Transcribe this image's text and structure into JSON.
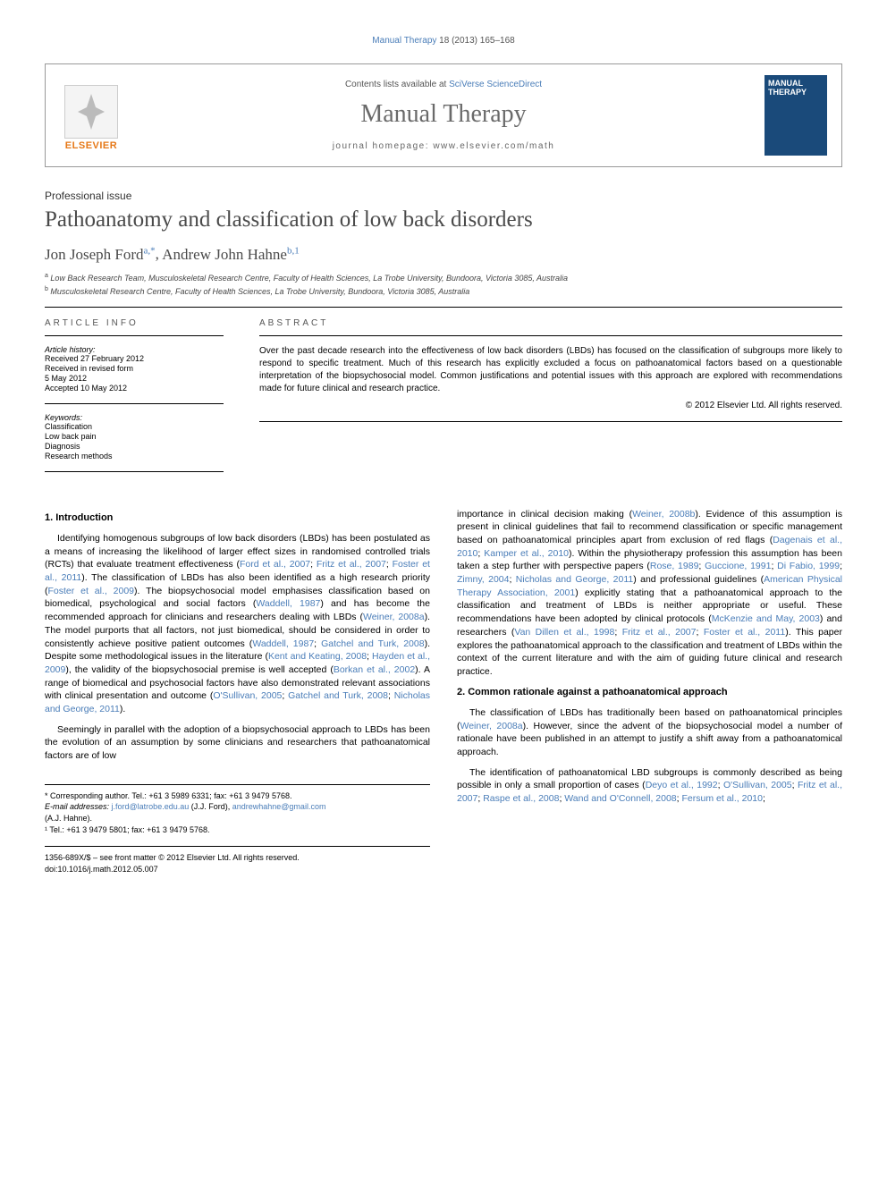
{
  "top_citation": {
    "journal": "Manual Therapy",
    "vol_pages": "18 (2013) 165–168"
  },
  "header": {
    "contents_prefix": "Contents lists available at ",
    "contents_link": "SciVerse ScienceDirect",
    "journal_name": "Manual Therapy",
    "homepage_label": "journal homepage: ",
    "homepage_url": "www.elsevier.com/math",
    "elsevier_label": "ELSEVIER",
    "cover_title": "MANUAL THERAPY"
  },
  "article": {
    "type": "Professional issue",
    "title": "Pathoanatomy and classification of low back disorders",
    "authors": [
      {
        "name": "Jon Joseph Ford",
        "marks": "a,*"
      },
      {
        "name": "Andrew John Hahne",
        "marks": "b,1"
      }
    ],
    "affiliations": [
      {
        "mark": "a",
        "text": "Low Back Research Team, Musculoskeletal Research Centre, Faculty of Health Sciences, La Trobe University, Bundoora, Victoria 3085, Australia"
      },
      {
        "mark": "b",
        "text": "Musculoskeletal Research Centre, Faculty of Health Sciences, La Trobe University, Bundoora, Victoria 3085, Australia"
      }
    ]
  },
  "article_info": {
    "heading": "ARTICLE INFO",
    "history_label": "Article history:",
    "history": [
      "Received 27 February 2012",
      "Received in revised form",
      "5 May 2012",
      "Accepted 10 May 2012"
    ],
    "keywords_label": "Keywords:",
    "keywords": [
      "Classification",
      "Low back pain",
      "Diagnosis",
      "Research methods"
    ]
  },
  "abstract": {
    "heading": "ABSTRACT",
    "text": "Over the past decade research into the effectiveness of low back disorders (LBDs) has focused on the classification of subgroups more likely to respond to specific treatment. Much of this research has explicitly excluded a focus on pathoanatomical factors based on a questionable interpretation of the biopsychosocial model. Common justifications and potential issues with this approach are explored with recommendations made for future clinical and research practice.",
    "copyright": "© 2012 Elsevier Ltd. All rights reserved."
  },
  "sections": {
    "s1_heading": "1. Introduction",
    "s1_p1_parts": [
      "Identifying homogenous subgroups of low back disorders (LBDs) has been postulated as a means of increasing the likelihood of larger effect sizes in randomised controlled trials (RCTs) that evaluate treatment effectiveness (",
      "Ford et al., 2007",
      "; ",
      "Fritz et al., 2007",
      "; ",
      "Foster et al., 2011",
      "). The classification of LBDs has also been identified as a high research priority (",
      "Foster et al., 2009",
      "). The biopsychosocial model emphasises classification based on biomedical, psychological and social factors (",
      "Waddell, 1987",
      ") and has become the recommended approach for clinicians and researchers dealing with LBDs (",
      "Weiner, 2008a",
      "). The model purports that all factors, not just biomedical, should be considered in order to consistently achieve positive patient outcomes (",
      "Waddell, 1987",
      "; ",
      "Gatchel and Turk, 2008",
      "). Despite some methodological issues in the literature (",
      "Kent and Keating, 2008",
      "; ",
      "Hayden et al., 2009",
      "), the validity of the biopsychosocial premise is well accepted (",
      "Borkan et al., 2002",
      "). A range of biomedical and psychosocial factors have also demonstrated relevant associations with clinical presentation and outcome (",
      "O'Sullivan, 2005",
      "; ",
      "Gatchel and Turk, 2008",
      "; ",
      "Nicholas and George, 2011",
      ")."
    ],
    "s1_p2": "Seemingly in parallel with the adoption of a biopsychosocial approach to LBDs has been the evolution of an assumption by some clinicians and researchers that pathoanatomical factors are of low",
    "col2_p1_parts": [
      "importance in clinical decision making (",
      "Weiner, 2008b",
      "). Evidence of this assumption is present in clinical guidelines that fail to recommend classification or specific management based on pathoanatomical principles apart from exclusion of red flags (",
      "Dagenais et al., 2010",
      "; ",
      "Kamper et al., 2010",
      "). Within the physiotherapy profession this assumption has been taken a step further with perspective papers (",
      "Rose, 1989",
      "; ",
      "Guccione, 1991",
      "; ",
      "Di Fabio, 1999",
      "; ",
      "Zimny, 2004",
      "; ",
      "Nicholas and George, 2011",
      ") and professional guidelines (",
      "American Physical Therapy Association, 2001",
      ") explicitly stating that a pathoanatomical approach to the classification and treatment of LBDs is neither appropriate or useful. These recommendations have been adopted by clinical protocols (",
      "McKenzie and May, 2003",
      ") and researchers (",
      "Van Dillen et al., 1998",
      "; ",
      "Fritz et al., 2007",
      "; ",
      "Foster et al., 2011",
      "). This paper explores the pathoanatomical approach to the classification and treatment of LBDs within the context of the current literature and with the aim of guiding future clinical and research practice."
    ],
    "s2_heading": "2. Common rationale against a pathoanatomical approach",
    "s2_p1_parts": [
      "The classification of LBDs has traditionally been based on pathoanatomical principles (",
      "Weiner, 2008a",
      "). However, since the advent of the biopsychosocial model a number of rationale have been published in an attempt to justify a shift away from a pathoanatomical approach."
    ],
    "s2_p2_parts": [
      "The identification of pathoanatomical LBD subgroups is commonly described as being possible in only a small proportion of cases (",
      "Deyo et al., 1992",
      "; ",
      "O'Sullivan, 2005",
      "; ",
      "Fritz et al., 2007",
      "; ",
      "Raspe et al., 2008",
      "; ",
      "Wand and O'Connell, 2008",
      "; ",
      "Fersum et al., 2010",
      ";"
    ]
  },
  "footnotes": {
    "corr": "* Corresponding author. Tel.: +61 3 5989 6331; fax: +61 3 9479 5768.",
    "email_label": "E-mail addresses: ",
    "email1": "j.ford@latrobe.edu.au",
    "email1_who": " (J.J. Ford), ",
    "email2": "andrewhahne@gmail.com",
    "email2_who": "(A.J. Hahne).",
    "fn1": "¹ Tel.: +61 3 9479 5801; fax: +61 3 9479 5768."
  },
  "bottom": {
    "line1": "1356-689X/$ – see front matter © 2012 Elsevier Ltd. All rights reserved.",
    "line2_label": "doi:",
    "line2_doi": "10.1016/j.math.2012.05.007"
  },
  "colors": {
    "link": "#4a7db8",
    "orange": "#e67817",
    "cover_bg": "#1a4a7a"
  }
}
